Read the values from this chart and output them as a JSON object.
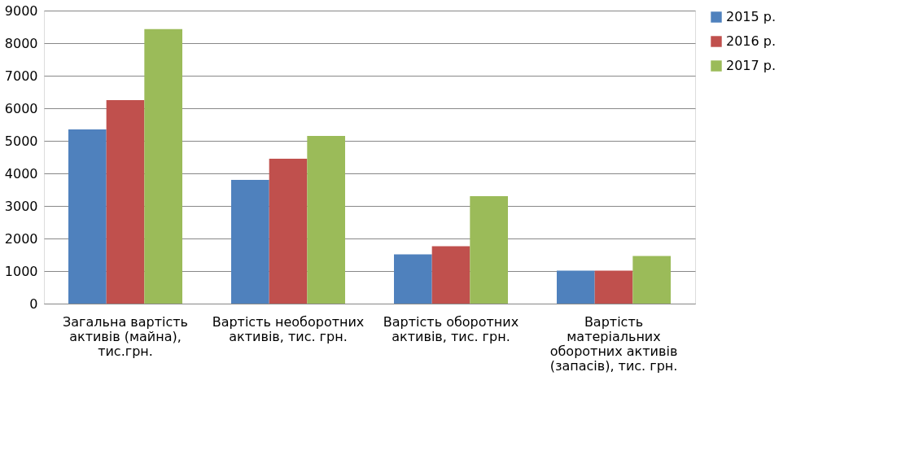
{
  "chart_data": {
    "type": "bar",
    "categories": [
      "Загальна вартість активів (майна), тис.грн.",
      "Вартість необоротних активів, тис. грн.",
      "Вартість оборотних активів, тис. грн.",
      "Вартість матеріальних оборотних активів (запасів), тис. грн."
    ],
    "series": [
      {
        "name": "2015 р.",
        "color": "#4f81bd",
        "values": [
          5350,
          3800,
          1510,
          1010
        ]
      },
      {
        "name": "2016 р.",
        "color": "#c0504d",
        "values": [
          6250,
          4450,
          1760,
          1010
        ]
      },
      {
        "name": "2017 р.",
        "color": "#9bbb59",
        "values": [
          8430,
          5150,
          3300,
          1460
        ]
      }
    ],
    "ylim": [
      0,
      9000
    ],
    "yticks": [
      0,
      1000,
      2000,
      3000,
      4000,
      5000,
      6000,
      7000,
      8000,
      9000
    ],
    "grid": "y",
    "legend": "right"
  }
}
